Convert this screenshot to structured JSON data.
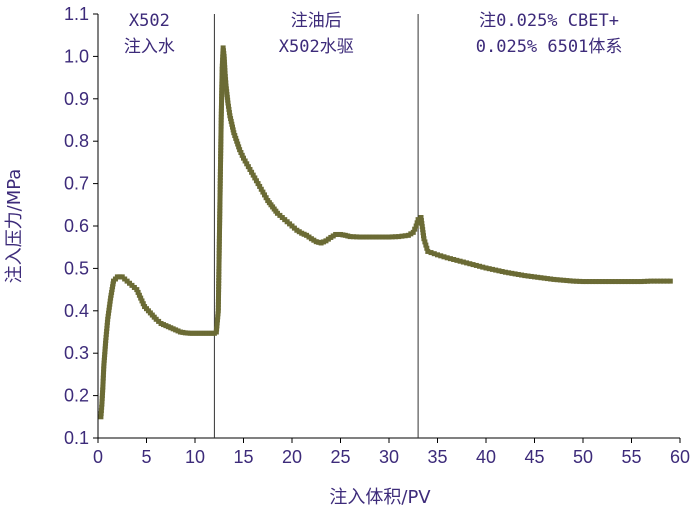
{
  "chart_data": {
    "type": "scatter",
    "xlabel": "注入体积/PV",
    "ylabel": "注入压力/MPa",
    "xlim": [
      0,
      60
    ],
    "ylim": [
      0.1,
      1.1
    ],
    "xticks": [
      "0",
      "5",
      "10",
      "15",
      "20",
      "25",
      "30",
      "35",
      "40",
      "45",
      "50",
      "55",
      "60"
    ],
    "yticks": [
      "0.1",
      "0.2",
      "0.3",
      "0.4",
      "0.5",
      "0.6",
      "0.7",
      "0.8",
      "0.9",
      "1.0",
      "1.1"
    ],
    "grid": false,
    "marker_color": "#6b6b35",
    "phase_dividers_x": [
      12.0,
      33.0
    ],
    "annotations": [
      {
        "lines": [
          "X502",
          "注入水"
        ],
        "x": 5.3
      },
      {
        "lines": [
          "注油后",
          "X502水驱"
        ],
        "x": 22.5
      },
      {
        "lines": [
          "注0.025% CBET+",
          "0.025% 6501体系"
        ],
        "x": 46.5
      }
    ],
    "series": [
      {
        "x": [
          0.3,
          0.4,
          0.5,
          0.6,
          0.8,
          1.0,
          1.3,
          1.6,
          2.0,
          2.5,
          3.0,
          3.5,
          4.0,
          4.4,
          4.8,
          5.2,
          5.6,
          6.0,
          6.5,
          7.0,
          7.5,
          8.0,
          8.5,
          9.0,
          9.5,
          10.0,
          10.5,
          11.0,
          11.5,
          12.0,
          12.2,
          12.4,
          12.5,
          12.6,
          12.7,
          12.8,
          12.9,
          13.0,
          13.1,
          13.2,
          13.4,
          13.6,
          13.8,
          14.0,
          14.3,
          14.6,
          15.0,
          15.5,
          16.0,
          16.5,
          17.0,
          17.5,
          18.0,
          18.5,
          19.0,
          19.5,
          20.0,
          20.5,
          21.0,
          21.5,
          22.0,
          22.5,
          23.0,
          23.5,
          24.0,
          24.5,
          25.0,
          25.5,
          26.0,
          27.0,
          28.0,
          29.0,
          30.0,
          31.0,
          32.0,
          32.5,
          32.8,
          33.0,
          33.3,
          33.6,
          34.0,
          35.0,
          36.0,
          37.0,
          38.0,
          39.0,
          40.0,
          41.0,
          42.0,
          43.0,
          44.0,
          45.0,
          46.0,
          47.0,
          48.0,
          49.0,
          50.0,
          51.0,
          52.0,
          53.0,
          54.0,
          55.0,
          56.0,
          57.0,
          58.0,
          59.0
        ],
        "y": [
          0.15,
          0.18,
          0.22,
          0.27,
          0.33,
          0.38,
          0.43,
          0.47,
          0.48,
          0.48,
          0.47,
          0.46,
          0.45,
          0.43,
          0.41,
          0.4,
          0.39,
          0.38,
          0.37,
          0.365,
          0.36,
          0.355,
          0.35,
          0.348,
          0.347,
          0.347,
          0.347,
          0.347,
          0.347,
          0.347,
          0.35,
          0.4,
          0.55,
          0.7,
          0.85,
          0.97,
          1.02,
          1.0,
          0.96,
          0.93,
          0.89,
          0.86,
          0.84,
          0.82,
          0.8,
          0.78,
          0.76,
          0.74,
          0.72,
          0.7,
          0.68,
          0.66,
          0.645,
          0.63,
          0.62,
          0.61,
          0.6,
          0.59,
          0.583,
          0.578,
          0.57,
          0.563,
          0.56,
          0.565,
          0.573,
          0.58,
          0.58,
          0.578,
          0.575,
          0.574,
          0.574,
          0.574,
          0.574,
          0.575,
          0.578,
          0.585,
          0.6,
          0.615,
          0.62,
          0.57,
          0.54,
          0.532,
          0.525,
          0.519,
          0.513,
          0.507,
          0.501,
          0.496,
          0.491,
          0.487,
          0.483,
          0.48,
          0.477,
          0.474,
          0.472,
          0.47,
          0.469,
          0.469,
          0.469,
          0.469,
          0.469,
          0.469,
          0.469,
          0.47,
          0.47,
          0.47
        ]
      }
    ]
  }
}
